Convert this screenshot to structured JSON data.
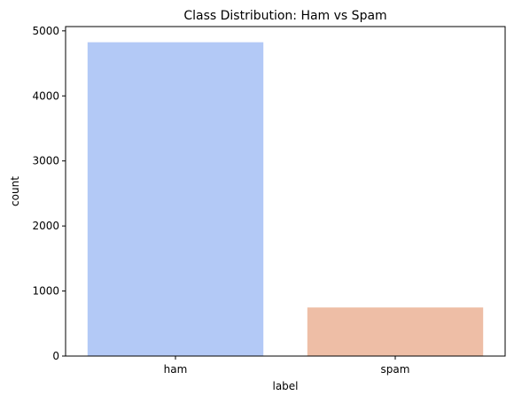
{
  "chart_data": {
    "type": "bar",
    "title": "Class Distribution: Ham vs Spam",
    "xlabel": "label",
    "ylabel": "count",
    "categories": [
      "ham",
      "spam"
    ],
    "values": [
      4825,
      747
    ],
    "colors": [
      "#b3c9f6",
      "#eebea6"
    ],
    "ylim": [
      0,
      5066
    ],
    "yticks": [
      0,
      1000,
      2000,
      3000,
      4000,
      5000
    ],
    "ytick_labels": [
      "0",
      "1000",
      "2000",
      "3000",
      "4000",
      "5000"
    ],
    "grid": false,
    "legend": "none"
  }
}
